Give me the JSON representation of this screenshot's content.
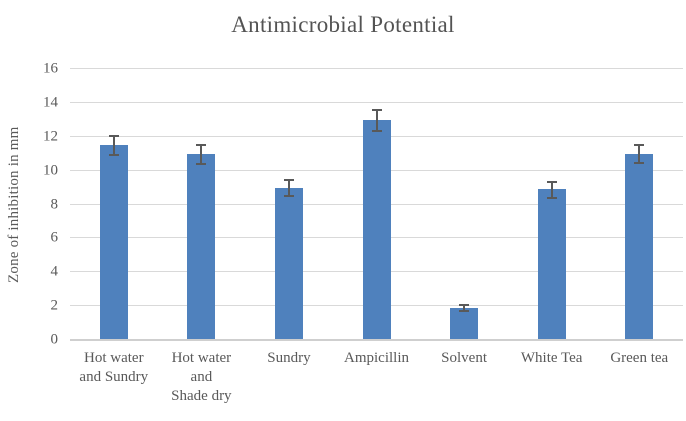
{
  "chart_data": {
    "type": "bar",
    "title": "Antimicrobial Potential",
    "xlabel": "",
    "ylabel": "Zone of inhibition in mm",
    "categories": [
      "Hot water and Sundry",
      "Hot water and Shade dry",
      "Sundry",
      "Ampicillin",
      "Solvent",
      "White Tea",
      "Green tea"
    ],
    "category_lines": [
      [
        "Hot water",
        "and Sundry"
      ],
      [
        "Hot water",
        "and",
        "Shade dry"
      ],
      [
        "Sundry"
      ],
      [
        "Ampicillin"
      ],
      [
        "Solvent"
      ],
      [
        "White Tea"
      ],
      [
        "Green tea"
      ]
    ],
    "values": [
      11.5,
      11.0,
      9.0,
      13.0,
      1.9,
      8.9,
      11.0
    ],
    "error_bars": [
      0.6,
      0.6,
      0.5,
      0.65,
      0.2,
      0.5,
      0.55
    ],
    "ylim": [
      0,
      16
    ],
    "ytick_step": 2,
    "ytick_labels": [
      "0",
      "2",
      "4",
      "6",
      "8",
      "10",
      "12",
      "14",
      "16"
    ],
    "grid": true,
    "legend": false,
    "bar_color": "#4F81BD",
    "error_bar_color": "#595959",
    "gridline_color": "#D9D9D9",
    "axis_line_color": "#CFCFCF",
    "text_color": "#595959",
    "title_color": "#535353"
  }
}
